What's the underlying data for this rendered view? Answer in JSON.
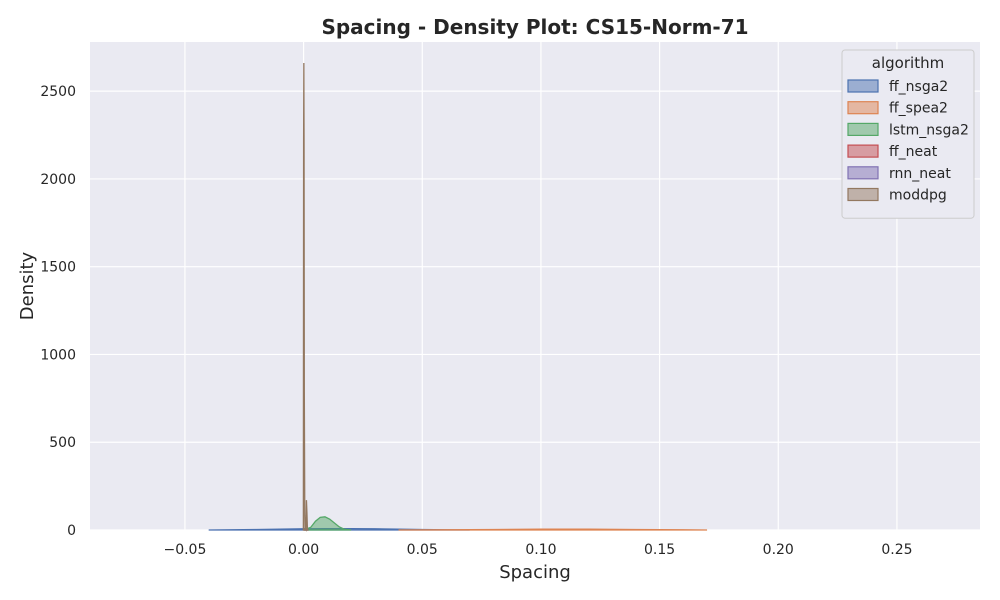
{
  "chart_data": {
    "type": "area",
    "title": "Spacing - Density Plot: CS15-Norm-71",
    "xlabel": "Spacing",
    "ylabel": "Density",
    "xlim": [
      -0.09,
      0.285
    ],
    "ylim": [
      0,
      2780
    ],
    "x_ticks": [
      -0.05,
      0.0,
      0.05,
      0.1,
      0.15,
      0.2,
      0.25
    ],
    "x_tick_labels": [
      "−0.05",
      "0.00",
      "0.05",
      "0.10",
      "0.15",
      "0.20",
      "0.25"
    ],
    "y_ticks": [
      0,
      500,
      1000,
      1500,
      2000,
      2500
    ],
    "y_tick_labels": [
      "0",
      "500",
      "1000",
      "1500",
      "2000",
      "2500"
    ],
    "grid": true,
    "legend": {
      "title": "algorithm",
      "placement": "top-right"
    },
    "series": [
      {
        "name": "ff_nsga2",
        "color": "#4c72b0",
        "x": [
          -0.04,
          -0.02,
          0.0,
          0.01,
          0.02,
          0.03,
          0.04,
          0.05,
          0.06,
          0.07
        ],
        "y": [
          0,
          3,
          7,
          8,
          8,
          7,
          5,
          3,
          1,
          0
        ]
      },
      {
        "name": "ff_spea2",
        "color": "#dd8452",
        "x": [
          0.04,
          0.06,
          0.08,
          0.1,
          0.12,
          0.14,
          0.16,
          0.17
        ],
        "y": [
          0,
          1,
          3,
          4.5,
          4.5,
          3,
          1,
          0
        ]
      },
      {
        "name": "lstm_nsga2",
        "color": "#55a868",
        "x": [
          0.0,
          0.003,
          0.005,
          0.007,
          0.009,
          0.011,
          0.013,
          0.015,
          0.017,
          0.02
        ],
        "y": [
          0,
          15,
          50,
          72,
          75,
          62,
          40,
          18,
          5,
          0
        ]
      },
      {
        "name": "ff_neat",
        "color": "#c44e52",
        "x": [
          0.0,
          0.0005,
          0.001,
          0.0015,
          0.002
        ],
        "y": [
          0,
          1,
          1.5,
          1,
          0
        ]
      },
      {
        "name": "rnn_neat",
        "color": "#8172b3",
        "x": [
          0.0,
          0.0005,
          0.001,
          0.0015,
          0.002
        ],
        "y": [
          0,
          1,
          1.5,
          1,
          0
        ]
      },
      {
        "name": "moddpg",
        "color": "#937860",
        "x": [
          -0.0001,
          0.0,
          0.0001,
          0.0002,
          0.0003,
          0.0005,
          0.0007,
          0.001,
          0.0012,
          0.0014,
          0.0016,
          0.0018
        ],
        "y": [
          0,
          2200,
          2660,
          2200,
          800,
          80,
          5,
          0,
          170,
          100,
          10,
          0
        ]
      }
    ]
  }
}
